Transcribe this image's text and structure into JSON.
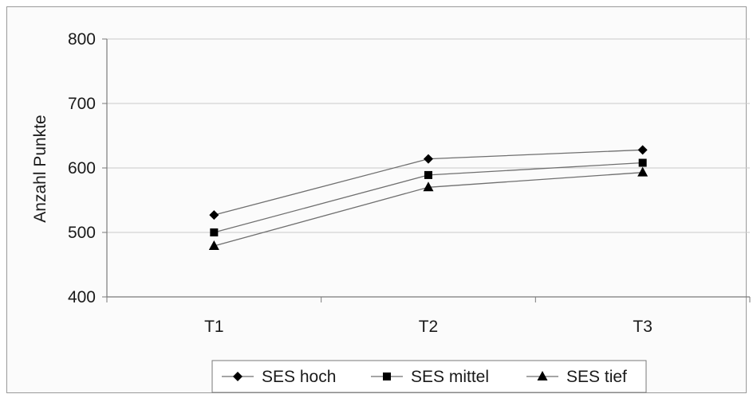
{
  "chart_data": {
    "type": "line",
    "categories": [
      "T1",
      "T2",
      "T3"
    ],
    "ylabel": "Anzahl Punkte",
    "ylim": [
      400,
      800
    ],
    "yticks": [
      400,
      500,
      600,
      700,
      800
    ],
    "grid": true,
    "legend_position": "bottom",
    "series": [
      {
        "name": "SES hoch",
        "marker": "diamond",
        "values": [
          527,
          614,
          628
        ]
      },
      {
        "name": "SES mittel",
        "marker": "square",
        "values": [
          500,
          589,
          608
        ]
      },
      {
        "name": "SES tief",
        "marker": "triangle",
        "values": [
          479,
          570,
          593
        ]
      }
    ],
    "colors": {
      "line": "#6f6f6f",
      "marker": "#000000",
      "grid": "#c8c8c8",
      "axis": "#7a7a7a"
    }
  }
}
